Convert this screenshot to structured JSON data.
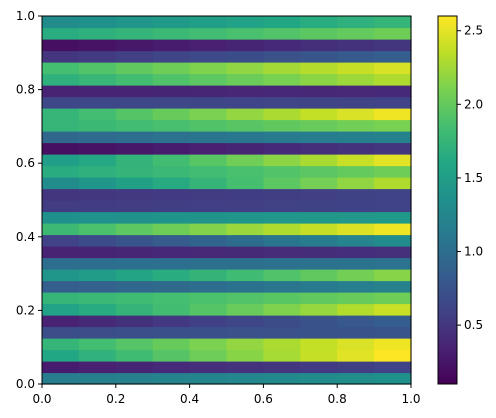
{
  "chart_data": {
    "type": "heatmap",
    "title": "",
    "xlabel": "",
    "ylabel": "",
    "xlim": [
      0,
      1
    ],
    "ylim": [
      0,
      1
    ],
    "xticks": [
      "0.0",
      "0.2",
      "0.4",
      "0.6",
      "0.8",
      "1.0"
    ],
    "yticks": [
      "0.0",
      "0.2",
      "0.4",
      "0.6",
      "0.8",
      "1.0"
    ],
    "grid": false,
    "colormap": "viridis",
    "colorbar": {
      "min": 0.1,
      "max": 2.6,
      "ticks": [
        "0.5",
        "1.0",
        "1.5",
        "2.0",
        "2.5"
      ],
      "tick_values": [
        0.5,
        1.0,
        1.5,
        2.0,
        2.5
      ]
    },
    "grid_size": {
      "rows": 32,
      "cols": 10
    },
    "row_left_values": [
      1.15,
      0.3,
      1.6,
      1.75,
      0.7,
      0.35,
      1.55,
      1.75,
      0.85,
      1.4,
      1.0,
      0.35,
      0.6,
      1.8,
      1.35,
      0.55,
      0.5,
      1.3,
      1.65,
      1.5,
      0.2,
      0.95,
      1.75,
      1.75,
      0.65,
      0.35,
      1.7,
      1.85,
      0.5,
      0.2,
      1.65,
      1.3
    ],
    "row_right_values": [
      1.35,
      0.6,
      2.6,
      2.55,
      0.75,
      0.85,
      2.4,
      2.05,
      1.2,
      2.15,
      1.05,
      0.45,
      1.3,
      2.55,
      1.45,
      0.6,
      0.6,
      2.3,
      2.05,
      2.5,
      0.5,
      1.2,
      2.1,
      2.55,
      0.6,
      0.4,
      2.3,
      2.45,
      0.85,
      0.5,
      2.05,
      1.75
    ]
  }
}
